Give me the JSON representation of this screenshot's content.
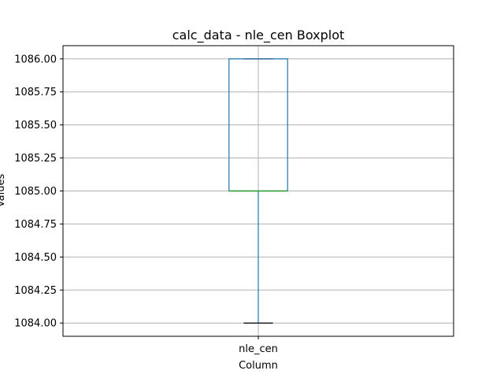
{
  "chart_data": {
    "type": "box",
    "title": "calc_data - nle_cen Boxplot",
    "xlabel": "Column",
    "ylabel": "Values",
    "categories": [
      "nle_cen"
    ],
    "boxes": [
      {
        "name": "nle_cen",
        "whisker_low": 1084.0,
        "q1": 1085.0,
        "median": 1085.0,
        "q3": 1086.0,
        "whisker_high": 1086.0
      }
    ],
    "ylim": [
      1083.9,
      1086.1
    ],
    "yticks": [
      1084.0,
      1084.25,
      1084.5,
      1084.75,
      1085.0,
      1085.25,
      1085.5,
      1085.75,
      1086.0
    ],
    "ytick_labels": [
      "1084.00",
      "1084.25",
      "1084.50",
      "1084.75",
      "1085.00",
      "1085.25",
      "1085.50",
      "1085.75",
      "1086.00"
    ],
    "grid": true,
    "colors": {
      "box": "#1f77b4",
      "median": "#2ca02c",
      "whisker": "#1f77b4",
      "cap": "#000000",
      "grid": "#b0b0b0",
      "axes": "#000000"
    }
  }
}
